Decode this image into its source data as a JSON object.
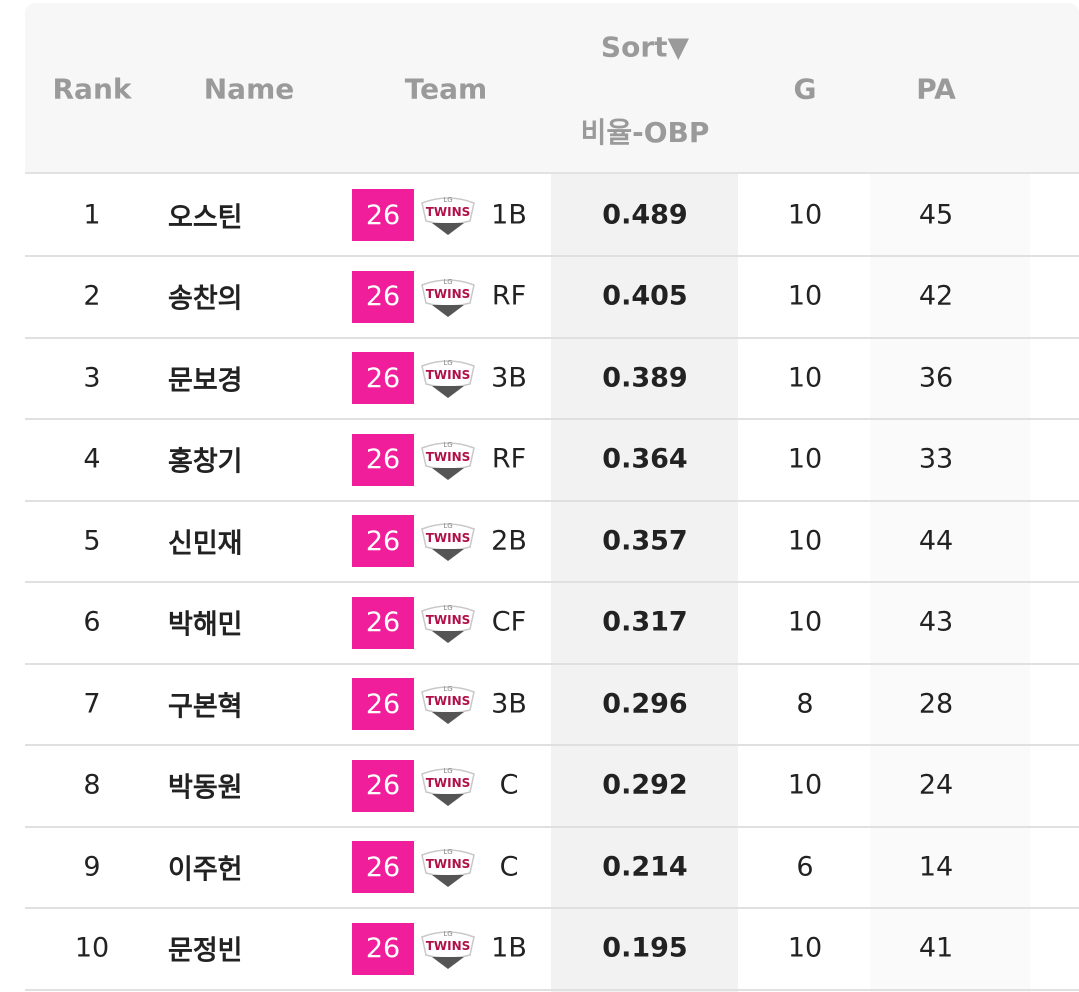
{
  "table": {
    "header": {
      "rank": "Rank",
      "name": "Name",
      "team": "Team",
      "sort": "Sort▼",
      "stat": "비율-OBP",
      "g": "G",
      "pa": "PA"
    },
    "logo": {
      "top": "LG",
      "main": "TWINS"
    },
    "rows": [
      [
        1,
        "오스틴",
        26,
        "1B",
        0.489,
        10,
        45
      ],
      [
        2,
        "송찬의",
        26,
        "RF",
        0.405,
        10,
        42
      ],
      [
        3,
        "문보경",
        26,
        "3B",
        0.389,
        10,
        36
      ],
      [
        4,
        "홍창기",
        26,
        "RF",
        0.364,
        10,
        33
      ],
      [
        5,
        "신민재",
        26,
        "2B",
        0.357,
        10,
        44
      ],
      [
        6,
        "박해민",
        26,
        "CF",
        0.317,
        10,
        43
      ],
      [
        7,
        "구본혁",
        26,
        "3B",
        0.296,
        8,
        28
      ],
      [
        8,
        "박동원",
        26,
        "C",
        0.292,
        10,
        24
      ],
      [
        9,
        "이주헌",
        26,
        "C",
        0.214,
        6,
        14
      ],
      [
        10,
        "문정빈",
        26,
        "1B",
        0.195,
        10,
        41
      ]
    ]
  }
}
